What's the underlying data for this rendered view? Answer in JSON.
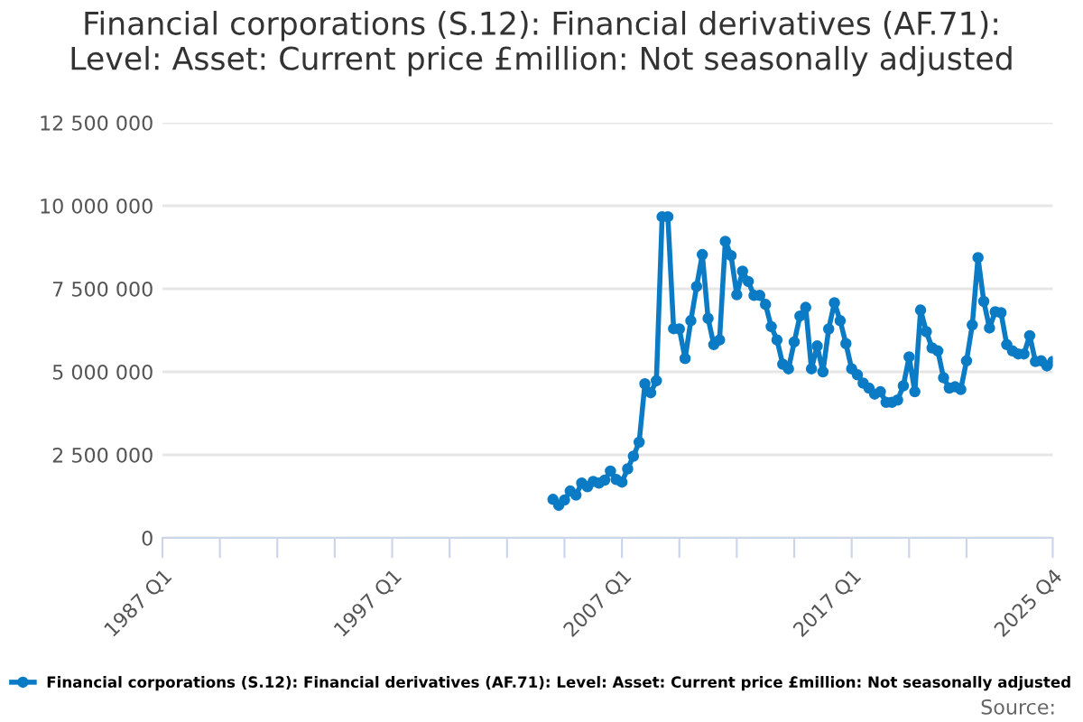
{
  "chart_data": {
    "type": "line",
    "title": "Financial corporations (S.12): Financial derivatives (AF.71):\nLevel: Asset: Current price £million: Not seasonally adjusted",
    "series": [
      {
        "name": "Financial corporations (S.12): Financial derivatives (AF.71): Level: Asset: Current price £million: Not seasonally adjusted",
        "color": "#0a7bc4",
        "x": [
          "2004-01",
          "2004-04",
          "2004-07",
          "2004-10",
          "2005-01",
          "2005-04",
          "2005-07",
          "2005-10",
          "2006-01",
          "2006-04",
          "2006-07",
          "2006-10",
          "2007-01",
          "2007-04",
          "2007-07",
          "2007-10",
          "2008-01",
          "2008-04",
          "2008-07",
          "2008-10",
          "2009-01",
          "2009-04",
          "2009-07",
          "2009-10",
          "2010-01",
          "2010-04",
          "2010-07",
          "2010-10",
          "2011-01",
          "2011-04",
          "2011-07",
          "2011-10",
          "2012-01",
          "2012-04",
          "2012-07",
          "2012-10",
          "2013-01",
          "2013-04",
          "2013-07",
          "2013-10",
          "2014-01",
          "2014-04",
          "2014-07",
          "2014-10",
          "2015-01",
          "2015-04",
          "2015-07",
          "2015-10",
          "2016-01",
          "2016-04",
          "2016-07",
          "2016-10",
          "2017-01",
          "2017-04",
          "2017-07",
          "2017-10",
          "2018-01",
          "2018-04",
          "2018-07",
          "2018-10",
          "2019-01",
          "2019-04",
          "2019-07",
          "2019-10",
          "2020-01",
          "2020-04",
          "2020-07",
          "2020-10",
          "2021-01",
          "2021-04",
          "2021-07",
          "2021-10",
          "2022-01",
          "2022-04",
          "2022-07",
          "2022-10",
          "2023-01",
          "2023-04",
          "2023-07",
          "2023-10",
          "2024-01",
          "2024-04",
          "2024-07",
          "2024-10",
          "2025-01",
          "2025-04",
          "2025-07",
          "2025-10"
        ],
        "values": [
          1160000,
          980000,
          1140000,
          1410000,
          1290000,
          1650000,
          1540000,
          1700000,
          1650000,
          1740000,
          2010000,
          1760000,
          1680000,
          2080000,
          2460000,
          2880000,
          4640000,
          4370000,
          4730000,
          9670000,
          9670000,
          6300000,
          6290000,
          5400000,
          6540000,
          7570000,
          8530000,
          6610000,
          5820000,
          5960000,
          8930000,
          8500000,
          7320000,
          8030000,
          7720000,
          7300000,
          7300000,
          7030000,
          6360000,
          5960000,
          5230000,
          5090000,
          5900000,
          6680000,
          6940000,
          5090000,
          5780000,
          5000000,
          6290000,
          7080000,
          6540000,
          5850000,
          5090000,
          4910000,
          4660000,
          4510000,
          4330000,
          4400000,
          4080000,
          4080000,
          4150000,
          4580000,
          5450000,
          4400000,
          6860000,
          6210000,
          5720000,
          5630000,
          4820000,
          4510000,
          4550000,
          4470000,
          5330000,
          6410000,
          8440000,
          7120000,
          6320000,
          6810000,
          6780000,
          5820000,
          5630000,
          5540000,
          5540000,
          6090000,
          5310000,
          5330000,
          5180000,
          5310000
        ]
      }
    ],
    "xlim": [
      "1987-01",
      "2025-10"
    ],
    "xticks": [
      {
        "value": "1987-01",
        "label": "1987 Q1"
      },
      {
        "value": "1989-07",
        "label": null
      },
      {
        "value": "1992-01",
        "label": null
      },
      {
        "value": "1994-07",
        "label": null
      },
      {
        "value": "1997-01",
        "label": "1997 Q1"
      },
      {
        "value": "1999-07",
        "label": null
      },
      {
        "value": "2002-01",
        "label": null
      },
      {
        "value": "2004-07",
        "label": null
      },
      {
        "value": "2007-01",
        "label": "2007 Q1"
      },
      {
        "value": "2009-07",
        "label": null
      },
      {
        "value": "2012-01",
        "label": null
      },
      {
        "value": "2014-07",
        "label": null
      },
      {
        "value": "2017-01",
        "label": "2017 Q1"
      },
      {
        "value": "2019-07",
        "label": null
      },
      {
        "value": "2022-01",
        "label": null
      },
      {
        "value": "2025-10",
        "label": "2025 Q4"
      }
    ],
    "ylim": [
      0,
      12500000
    ],
    "yticks": [
      0,
      {
        "value": 2500000,
        "label": "2 500 000"
      },
      {
        "value": 5000000,
        "label": "5 000 000"
      },
      {
        "value": 7500000,
        "label": "7 500 000"
      },
      {
        "value": 10000000,
        "label": "10 000 000"
      },
      {
        "value": 12500000,
        "label": "12 500 000"
      }
    ],
    "grid": "y",
    "legend": "bottom",
    "marker": "circle",
    "line_style": "solid",
    "annotations": [
      "Source:"
    ]
  }
}
